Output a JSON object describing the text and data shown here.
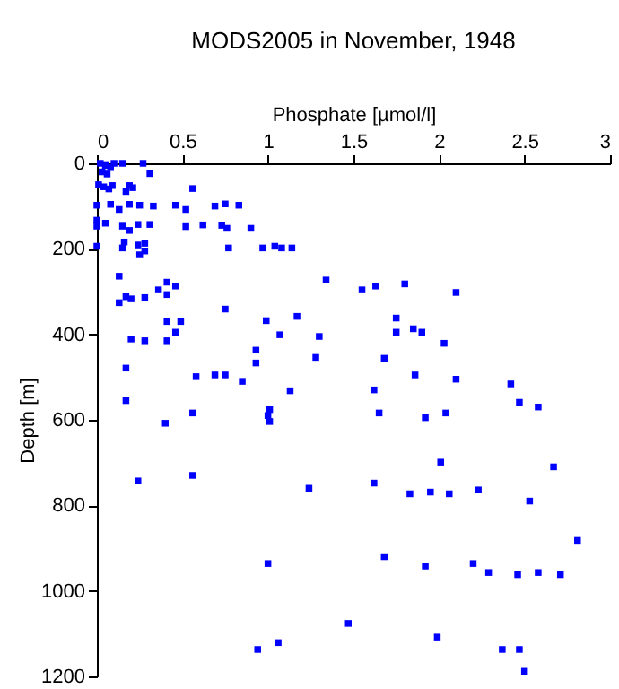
{
  "chart_data": {
    "type": "scatter",
    "title": "MODS2005 in November, 1948",
    "xlabel": "Phosphate [µmol/l]",
    "ylabel": "Depth [m]",
    "x": [
      0.02,
      0.05,
      0.08,
      0.1,
      0.03,
      0.06,
      0.15,
      0.27,
      0.31,
      0.01,
      0.04,
      0.07,
      0.09,
      0.19,
      0.21,
      0.17,
      0.56,
      0,
      0.08,
      0.13,
      0.19,
      0.25,
      0.33,
      0.46,
      0.52,
      0.69,
      0.75,
      0.83,
      0,
      0,
      0.05,
      0.15,
      0.19,
      0.24,
      0.31,
      0.52,
      0.62,
      0.73,
      0.76,
      0.9,
      0,
      0.16,
      0.15,
      0.24,
      0.28,
      0.28,
      0.25,
      0.77,
      0.97,
      1.04,
      1.08,
      1.14,
      0.13,
      0.36,
      0.46,
      0.41,
      0.41,
      0.17,
      0.2,
      0.13,
      0.28,
      0.75,
      0.99,
      1.17,
      0.41,
      0.49,
      0.46,
      1.07,
      1.3,
      0.2,
      0.28,
      0.41,
      0.93,
      1.28,
      0.93,
      0.17,
      0.58,
      0.69,
      0.75,
      0.85,
      1.13,
      0.17,
      0.56,
      1.01,
      1,
      1.01,
      0.4,
      1.34,
      1.55,
      1.63,
      1.8,
      2.1,
      1.75,
      1.85,
      1.9,
      1.75,
      2.03,
      1.68,
      1.86,
      2.1,
      2.42,
      1.62,
      2.47,
      2.58,
      1.65,
      1.92,
      2.04,
      0.24,
      0.56,
      1.24,
      1,
      0.94,
      1.06,
      2.01,
      2.67,
      1.62,
      1.83,
      1.95,
      2.06,
      2.23,
      2.53,
      2.81,
      1.68,
      1.92,
      2.2,
      2.29,
      2.46,
      2.58,
      2.71,
      1.47,
      1.99,
      2.37,
      2.47,
      2.5
    ],
    "values": [
      0,
      5,
      10,
      0,
      20,
      25,
      0,
      0,
      24,
      50,
      55,
      60,
      52,
      52,
      57,
      66,
      59,
      98,
      96,
      108,
      96,
      98,
      100,
      98,
      108,
      100,
      95,
      98,
      147,
      133,
      140,
      147,
      157,
      143,
      143,
      148,
      144,
      145,
      152,
      152,
      194,
      184,
      198,
      191,
      187,
      205,
      214,
      198,
      198,
      194,
      198,
      198,
      264,
      296,
      287,
      278,
      307,
      312,
      317,
      326,
      314,
      341,
      368,
      358,
      370,
      370,
      395,
      401,
      405,
      411,
      415,
      415,
      437,
      454,
      467,
      479,
      499,
      495,
      495,
      510,
      532,
      555,
      584,
      576,
      590,
      604,
      608,
      273,
      296,
      287,
      282,
      302,
      362,
      387,
      395,
      395,
      421,
      456,
      495,
      505,
      516,
      530,
      559,
      570,
      584,
      595,
      584,
      743,
      730,
      760,
      936,
      1137,
      1121,
      699,
      710,
      748,
      773,
      769,
      773,
      764,
      790,
      882,
      920,
      942,
      936,
      957,
      962,
      957,
      962,
      1076,
      1108,
      1137,
      1137,
      1188
    ],
    "color": "#0000ff",
    "marker": "square",
    "grid": false,
    "xlim": [
      0,
      3
    ],
    "xticks": [
      0,
      0.5,
      1,
      1.5,
      2,
      2.5,
      3
    ],
    "ylim": [
      1200,
      0
    ],
    "yticks": [
      0,
      200,
      400,
      600,
      800,
      1000,
      1200
    ]
  }
}
